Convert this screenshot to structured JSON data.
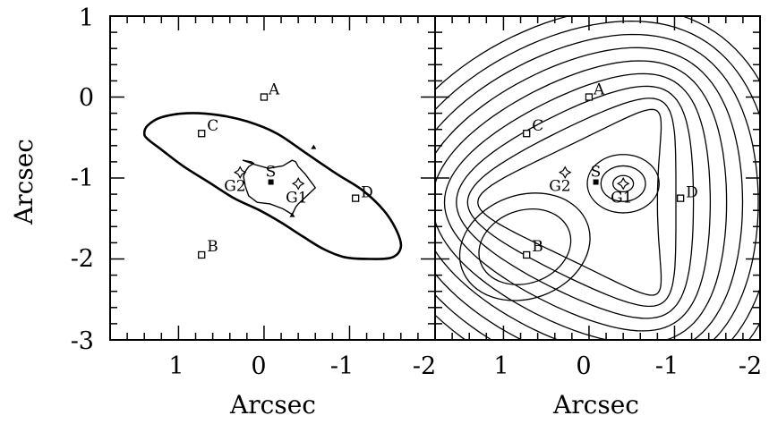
{
  "chart_data": [
    {
      "type": "scatter",
      "panel": "left",
      "title": "",
      "xlabel": "Arcsec",
      "ylabel": "Arcsec",
      "xlim": [
        1.8,
        -2.0
      ],
      "ylim": [
        -3.0,
        1.0
      ],
      "xticks": [
        1,
        0,
        -1,
        -2
      ],
      "yticks": [
        1,
        0,
        -1,
        -2,
        -3
      ],
      "x_reversed": true,
      "points": [
        {
          "name": "A",
          "x": 0.0,
          "y": 0.0,
          "marker": "open-square"
        },
        {
          "name": "C",
          "x": 0.73,
          "y": -0.45,
          "marker": "open-square"
        },
        {
          "name": "B",
          "x": 0.73,
          "y": -1.95,
          "marker": "open-square"
        },
        {
          "name": "D",
          "x": -1.07,
          "y": -1.25,
          "marker": "open-square"
        },
        {
          "name": "S",
          "x": -0.08,
          "y": -1.05,
          "marker": "filled-square"
        },
        {
          "name": "G1",
          "x": -0.4,
          "y": -1.07,
          "marker": "star"
        },
        {
          "name": "G2",
          "x": 0.28,
          "y": -0.93,
          "marker": "star"
        }
      ],
      "curves": [
        {
          "name": "critical curve",
          "x": [
            1.4,
            1.36,
            1.2,
            0.9,
            0.55,
            0.2,
            -0.15,
            -0.5,
            -0.85,
            -1.15,
            -1.4,
            -1.55,
            -1.6,
            -1.5,
            -1.25,
            -0.95,
            -0.7,
            -0.45,
            -0.2,
            0.05,
            0.35,
            0.65,
            0.95,
            1.2,
            1.36,
            1.4
          ],
          "y": [
            -0.45,
            -0.35,
            -0.25,
            -0.2,
            -0.22,
            -0.3,
            -0.45,
            -0.7,
            -0.95,
            -1.15,
            -1.4,
            -1.65,
            -1.85,
            -1.98,
            -2.0,
            -1.98,
            -1.88,
            -1.72,
            -1.55,
            -1.4,
            -1.25,
            -1.05,
            -0.85,
            -0.65,
            -0.52,
            -0.45
          ]
        },
        {
          "name": "caustic",
          "x": [
            0.25,
            0.12,
            -0.05,
            -0.22,
            -0.33,
            -0.37,
            -0.4,
            -0.48,
            -0.6,
            -0.48,
            -0.4,
            -0.37,
            -0.33,
            -0.22,
            -0.07,
            0.08,
            0.18,
            0.22,
            0.24,
            0.22,
            0.18,
            0.12,
            0.15,
            0.25
          ],
          "y": [
            -0.78,
            -0.83,
            -0.88,
            -0.85,
            -0.78,
            -0.8,
            -0.86,
            -0.95,
            -1.12,
            -1.24,
            -1.32,
            -1.36,
            -1.45,
            -1.38,
            -1.32,
            -1.3,
            -1.22,
            -1.1,
            -0.98,
            -0.92,
            -0.86,
            -0.82,
            -0.8,
            -0.78
          ]
        }
      ]
    },
    {
      "type": "scatter",
      "panel": "right",
      "title": "",
      "xlabel": "Arcsec",
      "ylabel": "",
      "xlim": [
        1.8,
        -2.0
      ],
      "ylim": [
        -3.0,
        1.0
      ],
      "xticks": [
        1,
        0,
        -1,
        -2
      ],
      "yticks": [],
      "x_reversed": true,
      "contour_plot": true,
      "points": [
        {
          "name": "A",
          "x": 0.0,
          "y": 0.0,
          "marker": "open-square"
        },
        {
          "name": "C",
          "x": 0.73,
          "y": -0.45,
          "marker": "open-square"
        },
        {
          "name": "B",
          "x": 0.73,
          "y": -1.95,
          "marker": "open-square"
        },
        {
          "name": "D",
          "x": -1.07,
          "y": -1.25,
          "marker": "open-square"
        },
        {
          "name": "S",
          "x": -0.08,
          "y": -1.05,
          "marker": "filled-square"
        },
        {
          "name": "G1",
          "x": -0.4,
          "y": -1.07,
          "marker": "star"
        },
        {
          "name": "G2",
          "x": 0.28,
          "y": -0.93,
          "marker": "star"
        }
      ]
    }
  ]
}
